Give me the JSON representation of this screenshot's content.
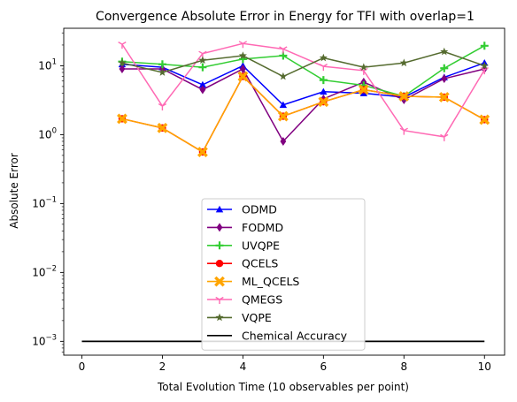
{
  "chart_data": {
    "type": "line",
    "title": "Convergence Absolute Error in Energy for TFI with overlap=1",
    "xlabel": "Total Evolution Time (10 observables per point)",
    "ylabel": "Absolute Error",
    "x_scale": "linear",
    "y_scale": "log",
    "xlim": [
      -0.45,
      10.5
    ],
    "ylim": [
      0.00063,
      35
    ],
    "x_ticks": [
      0,
      2,
      4,
      6,
      8,
      10
    ],
    "x_tick_labels": [
      "0",
      "2",
      "4",
      "6",
      "8",
      "10"
    ],
    "y_ticks": [
      0.001,
      0.01,
      0.1,
      1,
      10
    ],
    "y_tick_labels": [
      "10",
      "10",
      "10",
      "10",
      "10"
    ],
    "y_tick_exponents": [
      "−3",
      "−2",
      "−1",
      "0",
      "1"
    ],
    "grid": false,
    "legend_position": "lower center",
    "x": [
      1,
      2,
      3,
      4,
      5,
      6,
      7,
      8,
      9,
      10
    ],
    "series": [
      {
        "name": "ODMD",
        "color": "#0000ff",
        "marker": "triangle",
        "values": [
          10.5,
          9.5,
          5.3,
          10.0,
          2.7,
          4.2,
          4.0,
          3.5,
          6.8,
          11.0
        ]
      },
      {
        "name": "FODMD",
        "color": "#800080",
        "marker": "diamond",
        "values": [
          9.0,
          9.0,
          4.5,
          9.0,
          0.8,
          3.3,
          5.8,
          3.2,
          6.5,
          9.0
        ]
      },
      {
        "name": "UVQPE",
        "color": "#32cd32",
        "marker": "plus",
        "values": [
          11.5,
          10.5,
          9.5,
          12.5,
          14.0,
          6.2,
          5.2,
          3.6,
          9.2,
          19.5
        ]
      },
      {
        "name": "QCELS",
        "color": "#ff0000",
        "marker": "circle",
        "values": [
          1.7,
          1.25,
          0.56,
          7.0,
          1.85,
          3.0,
          4.5,
          3.6,
          3.5,
          1.65
        ]
      },
      {
        "name": "ML_QCELS",
        "color": "#ffa500",
        "marker": "x-filled",
        "values": [
          1.7,
          1.25,
          0.56,
          7.0,
          1.85,
          3.0,
          4.5,
          3.6,
          3.5,
          1.65
        ]
      },
      {
        "name": "QMEGS",
        "color": "#ff69b4",
        "marker": "tri-down",
        "values": [
          20.5,
          2.6,
          15.0,
          21.0,
          17.5,
          9.8,
          8.5,
          1.15,
          0.93,
          8.7
        ]
      },
      {
        "name": "VQPE",
        "color": "#556b2f",
        "marker": "star",
        "values": [
          11.0,
          8.0,
          12.0,
          14.0,
          7.0,
          13.0,
          9.5,
          11.0,
          16.0,
          10.0
        ]
      }
    ],
    "reference_lines": [
      {
        "name": "Chemical Accuracy",
        "color": "#000000",
        "y": 0.001,
        "x_range": [
          0,
          10
        ]
      }
    ]
  }
}
